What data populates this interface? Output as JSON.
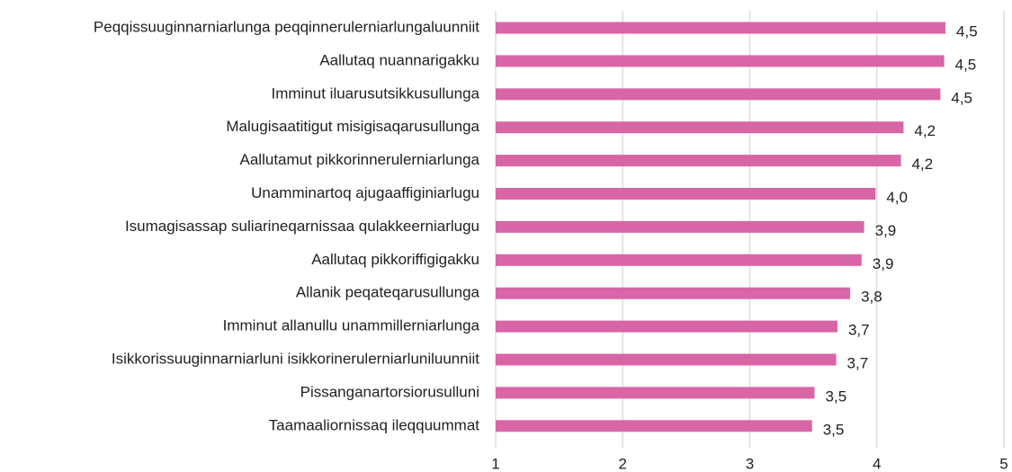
{
  "chart_data": {
    "type": "barh",
    "categories": [
      "Peqqissuuginnarniarlunga peqqinnerulerniarlungaluunniit",
      "Aallutaq nuannarigakku",
      "Imminut iluarusutsikkusullunga",
      "Malugisaatitigut misigisaqarusullunga",
      "Aallutamut pikkorinnerulerniarlunga",
      "Unamminartoq ajugaaffiginiarlugu",
      "Isumagisassap suliarineqarnissaa qulakkeerniarlugu",
      "Aallutaq pikkoriffigigakku",
      "Allanik peqateqarusullunga",
      "Imminut allanullu unammillerniarlunga",
      "Isikkorissuuginnarniarluni isikkorinerulerniarluniluunniit",
      "Pissanganartorsiorusulluni",
      "Taamaaliornissaq ileqquummat"
    ],
    "values": [
      4.54,
      4.53,
      4.5,
      4.21,
      4.19,
      3.99,
      3.9,
      3.88,
      3.79,
      3.69,
      3.68,
      3.51,
      3.49
    ],
    "value_labels": [
      "4,5",
      "4,5",
      "4,5",
      "4,2",
      "4,2",
      "4,0",
      "3,9",
      "3,9",
      "3,8",
      "3,7",
      "3,7",
      "3,5",
      "3,5"
    ],
    "color": "#d866a6",
    "xlim": [
      1,
      5
    ],
    "xticks": [
      1,
      2,
      3,
      4,
      5
    ],
    "grid": true
  }
}
